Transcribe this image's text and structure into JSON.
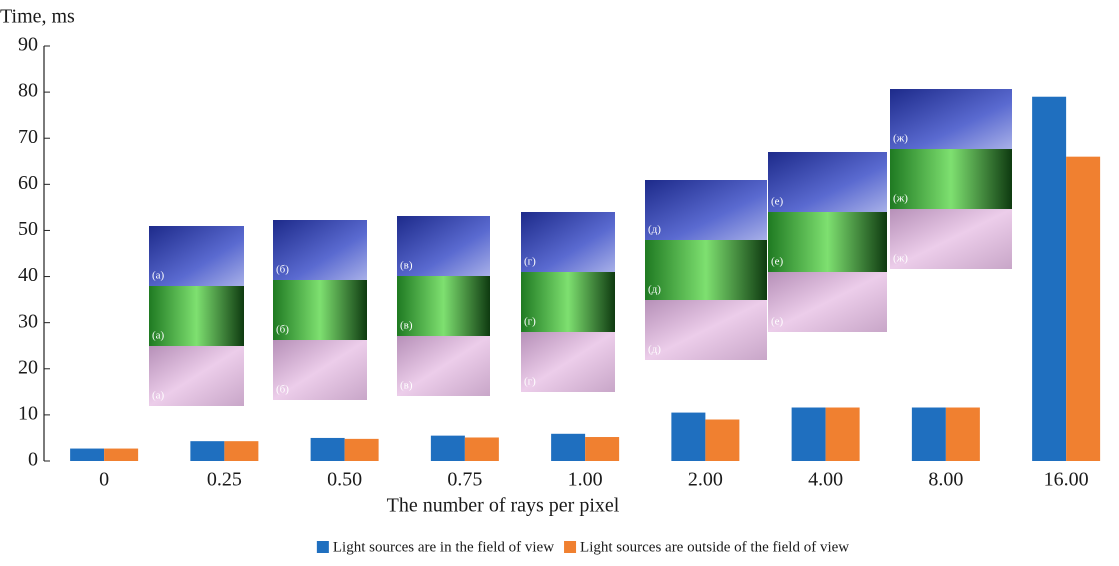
{
  "chart_data": {
    "type": "bar",
    "y_label": "Time, ms",
    "x_label": "The number of rays per pixel",
    "categories": [
      "0",
      "0.25",
      "0.50",
      "0.75",
      "1.00",
      "2.00",
      "4.00",
      "8.00",
      "16.00"
    ],
    "series": [
      {
        "name": "Light sources are in the field of view",
        "color": "#1f6fbf",
        "values": [
          2.7,
          4.3,
          5.0,
          5.5,
          5.9,
          10.5,
          11.6,
          11.6,
          79
        ]
      },
      {
        "name": "Light sources are outside of the field of view",
        "color": "#f08030",
        "values": [
          2.7,
          4.3,
          4.8,
          5.1,
          5.2,
          9.0,
          11.6,
          11.6,
          66
        ]
      }
    ],
    "ylim": [
      0,
      90
    ],
    "yticks": [
      0,
      10,
      20,
      30,
      40,
      50,
      60,
      70,
      80,
      90
    ],
    "grid": false,
    "legend": "bottom",
    "insets": [
      [
        "(а)",
        "(а)",
        "(а)"
      ],
      [
        "(б)",
        "(б)",
        "(б)"
      ],
      [
        "(в)",
        "(в)",
        "(в)"
      ],
      [
        "(г)",
        "(г)",
        "(г)"
      ],
      [
        "(д)",
        "(д)",
        "(д)"
      ],
      [
        "(е)",
        "(е)",
        "(е)"
      ],
      [
        "(ж)",
        "(ж)",
        "(ж)"
      ]
    ]
  }
}
